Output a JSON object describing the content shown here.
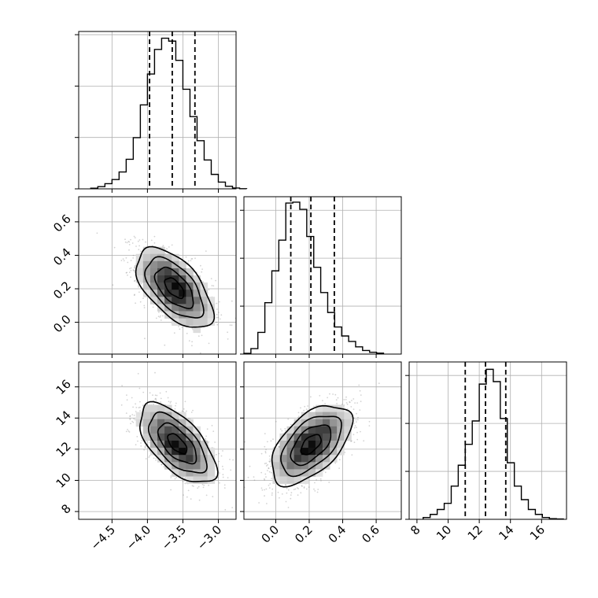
{
  "chart_data": {
    "type": "corner",
    "parameters": [
      {
        "ticks": [
          -4.5,
          -4.0,
          -3.5,
          -3.0
        ],
        "tick_labels": [
          "−4.5",
          "−4.0",
          "−3.5",
          "−3.0"
        ],
        "range": [
          -4.97,
          -2.75
        ],
        "quantiles": [
          -3.97,
          -3.65,
          -3.33
        ],
        "histogram": {
          "bin_start": -4.8,
          "bin_width": 0.1,
          "counts": [
            4,
            14,
            32,
            58,
            105,
            184,
            319,
            523,
            715,
            868,
            938,
            920,
            800,
            620,
            450,
            300,
            180,
            90,
            42,
            16,
            5,
            1
          ],
          "ylim": [
            0,
            980
          ],
          "y_ticks": [
            0,
            320,
            640,
            960
          ]
        }
      },
      {
        "ticks": [
          0.0,
          0.2,
          0.4,
          0.6
        ],
        "tick_labels": [
          "0.0",
          "0.2",
          "0.4",
          "0.6"
        ],
        "range": [
          -0.19,
          0.75
        ],
        "quantiles": [
          0.09,
          0.21,
          0.35
        ],
        "histogram": {
          "bin_start": -0.19,
          "bin_width": 0.0417,
          "counts": [
            4,
            30,
            120,
            284,
            460,
            630,
            835,
            840,
            800,
            650,
            480,
            340,
            230,
            150,
            100,
            70,
            40,
            20,
            10,
            5
          ],
          "ylim": [
            0,
            870
          ],
          "y_ticks": [
            0,
            265,
            530,
            795
          ]
        }
      },
      {
        "ticks": [
          8,
          10,
          12,
          14,
          16
        ],
        "tick_labels": [
          "8",
          "10",
          "12",
          "14",
          "16"
        ],
        "range": [
          7.5,
          17.6
        ],
        "quantiles": [
          11.1,
          12.4,
          13.7
        ],
        "histogram": {
          "bin_start": 8.4,
          "bin_width": 0.45,
          "counts": [
            15,
            40,
            80,
            130,
            270,
            440,
            610,
            800,
            1100,
            1220,
            1120,
            820,
            460,
            270,
            160,
            80,
            40,
            15,
            5,
            3
          ],
          "ylim": [
            0,
            1280
          ],
          "y_ticks": [
            0,
            390,
            780,
            1170
          ]
        }
      }
    ],
    "pairs": [
      {
        "x": 0,
        "y": 1,
        "mean": [
          -3.62,
          0.205
        ],
        "sd": [
          0.27,
          0.12
        ],
        "rho": -0.58
      },
      {
        "x": 0,
        "y": 2,
        "mean": [
          -3.58,
          12.35
        ],
        "sd": [
          0.27,
          1.28
        ],
        "rho": -0.62
      },
      {
        "x": 1,
        "y": 2,
        "mean": [
          0.21,
          12.3
        ],
        "sd": [
          0.12,
          1.28
        ],
        "rho": 0.55
      }
    ],
    "contour_levels_sigma": [
      0.5,
      1.0,
      1.5,
      2.0
    ],
    "grid": true,
    "colors": {
      "line": "#000000",
      "grid": "#b0b0b0",
      "scatter": "#808080"
    }
  }
}
